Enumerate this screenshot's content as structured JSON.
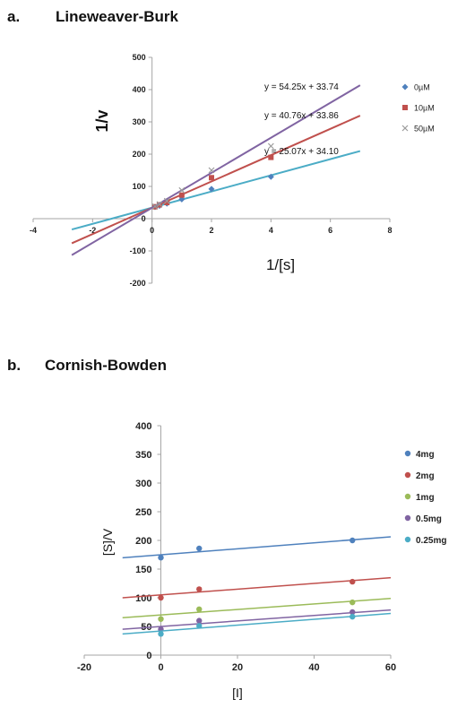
{
  "panel_a": {
    "letter": "a.",
    "title": "Lineweaver-Burk"
  },
  "panel_b": {
    "letter": "b.",
    "title": "Cornish-Bowden"
  },
  "chart_data": [
    {
      "type": "scatter",
      "title": "Lineweaver-Burk",
      "xlabel": "1/[s]",
      "ylabel": "1/v",
      "xlim": [
        -4,
        8
      ],
      "ylim": [
        -200,
        500
      ],
      "xticks": [
        -4,
        -2,
        0,
        2,
        4,
        6,
        8
      ],
      "yticks": [
        -200,
        -100,
        0,
        100,
        200,
        300,
        400,
        500
      ],
      "grid": false,
      "legend_position": "right",
      "series": [
        {
          "name": "0µM",
          "color": "#4f81bd",
          "line_color": "#4bacc6",
          "marker": "diamond",
          "x": [
            0.1,
            0.25,
            0.5,
            1,
            2,
            4
          ],
          "y": [
            36,
            40,
            47,
            60,
            92,
            130
          ],
          "fit": {
            "slope": 25.07,
            "intercept": 34.1,
            "x_range": [
              -2.7,
              7
            ]
          },
          "equation": "y = 25.07x + 34.10"
        },
        {
          "name": "10µM",
          "color": "#c0504d",
          "line_color": "#c0504d",
          "marker": "square",
          "x": [
            0.1,
            0.25,
            0.5,
            1,
            2,
            4
          ],
          "y": [
            37,
            43,
            50,
            73,
            127,
            190
          ],
          "fit": {
            "slope": 40.76,
            "intercept": 33.86,
            "x_range": [
              -2.7,
              7
            ]
          },
          "equation": "y = 40.76x + 33.86"
        },
        {
          "name": "50µM",
          "color": "#9a9a9a",
          "line_color": "#8064a2",
          "marker": "x",
          "x": [
            0.1,
            0.25,
            0.5,
            1,
            2,
            4
          ],
          "y": [
            38,
            45,
            55,
            88,
            150,
            225
          ],
          "fit": {
            "slope": 54.25,
            "intercept": 33.74,
            "x_range": [
              -2.7,
              7
            ]
          },
          "equation": "y = 54.25x + 33.74"
        }
      ]
    },
    {
      "type": "scatter",
      "title": "Cornish-Bowden",
      "xlabel": "[I]",
      "ylabel": "[S]/V",
      "xlim": [
        -20,
        60
      ],
      "ylim": [
        0,
        400
      ],
      "xticks": [
        -20,
        0,
        20,
        40,
        60
      ],
      "yticks": [
        0,
        50,
        100,
        150,
        200,
        250,
        300,
        350,
        400
      ],
      "grid": false,
      "legend_position": "right",
      "series": [
        {
          "name": "4mg",
          "color": "#4f81bd",
          "x": [
            0,
            10,
            50
          ],
          "y": [
            170,
            186,
            200
          ],
          "fit": {
            "slope": 0.52,
            "intercept": 175,
            "x_range": [
              -10,
              60
            ]
          }
        },
        {
          "name": "2mg",
          "color": "#c0504d",
          "x": [
            0,
            10,
            50
          ],
          "y": [
            100,
            115,
            128
          ],
          "fit": {
            "slope": 0.5,
            "intercept": 105,
            "x_range": [
              -10,
              60
            ]
          }
        },
        {
          "name": "1mg",
          "color": "#9bbb59",
          "x": [
            0,
            10,
            50
          ],
          "y": [
            63,
            80,
            92
          ],
          "fit": {
            "slope": 0.48,
            "intercept": 70,
            "x_range": [
              -10,
              60
            ]
          }
        },
        {
          "name": "0.5mg",
          "color": "#8064a2",
          "x": [
            0,
            10,
            50
          ],
          "y": [
            45,
            60,
            75
          ],
          "fit": {
            "slope": 0.48,
            "intercept": 50,
            "x_range": [
              -10,
              60
            ]
          }
        },
        {
          "name": "0.25mg",
          "color": "#4bacc6",
          "x": [
            0,
            10,
            50
          ],
          "y": [
            37,
            51,
            67
          ],
          "fit": {
            "slope": 0.51,
            "intercept": 42,
            "x_range": [
              -10,
              60
            ]
          }
        }
      ]
    }
  ]
}
